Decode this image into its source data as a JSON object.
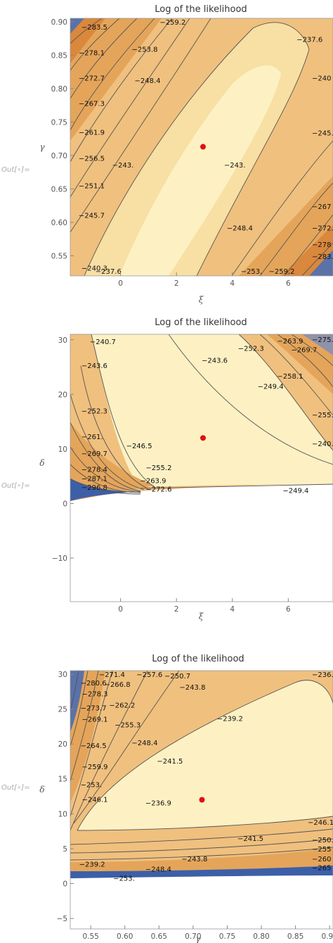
{
  "out_label": "Out[∘]=",
  "colors": {
    "high": "#fdf1c4",
    "mid": "#f0c07e",
    "low": "#d9883c",
    "min": "#3d5fa8",
    "line": "#555555",
    "point": "#e01010"
  },
  "chart_data": [
    {
      "type": "contour",
      "title": "Log of the likelihood",
      "xlabel": "ξ",
      "ylabel": "γ",
      "xlim": [
        -1.8,
        7.6
      ],
      "ylim": [
        0.52,
        0.905
      ],
      "xticks": [
        "0",
        "2",
        "4",
        "6"
      ],
      "xtick_values": [
        0,
        2,
        4,
        6
      ],
      "yticks": [
        "0.55",
        "0.60",
        "0.65",
        "0.70",
        "0.75",
        "0.80",
        "0.85",
        "0.90"
      ],
      "ytick_values": [
        0.55,
        0.6,
        0.65,
        0.7,
        0.75,
        0.8,
        0.85,
        0.9
      ],
      "max_point": {
        "x": 2.95,
        "y": 0.713
      },
      "contour_labels": [
        {
          "text": "-237.6",
          "x": 6.3,
          "y": 0.87
        },
        {
          "text": "-253.8",
          "x": 0.4,
          "y": 0.855
        },
        {
          "text": "-248.4",
          "x": 0.5,
          "y": 0.808
        },
        {
          "text": "-243.",
          "x": -0.3,
          "y": 0.682
        },
        {
          "text": "-243.",
          "x": 3.7,
          "y": 0.682
        },
        {
          "text": "-248.4",
          "x": 3.8,
          "y": 0.588
        },
        {
          "text": "-240.3",
          "x": -1.4,
          "y": 0.528
        },
        {
          "text": "-237.6",
          "x": -0.9,
          "y": 0.523
        },
        {
          "text": "-283.5",
          "x": -1.4,
          "y": 0.888
        },
        {
          "text": "-278.1",
          "x": -1.5,
          "y": 0.85
        },
        {
          "text": "-272.7",
          "x": -1.5,
          "y": 0.812
        },
        {
          "text": "-267.3",
          "x": -1.5,
          "y": 0.774
        },
        {
          "text": "-261.9",
          "x": -1.5,
          "y": 0.731
        },
        {
          "text": "-256.5",
          "x": -1.5,
          "y": 0.692
        },
        {
          "text": "-251.1",
          "x": -1.5,
          "y": 0.651
        },
        {
          "text": "-245.7",
          "x": -1.5,
          "y": 0.607
        },
        {
          "text": "-259.2",
          "x": 1.4,
          "y": 0.898
        },
        {
          "text": "-253.",
          "x": 4.3,
          "y": 0.523
        },
        {
          "text": "-259.2",
          "x": 5.3,
          "y": 0.523
        },
        {
          "text": "-240",
          "x": 7.3,
          "y": 0.812
        },
        {
          "text": "-245.",
          "x": 7.3,
          "y": 0.73
        },
        {
          "text": "-267",
          "x": 7.3,
          "y": 0.62
        },
        {
          "text": "-272.",
          "x": 7.3,
          "y": 0.588
        },
        {
          "text": "-278",
          "x": 7.3,
          "y": 0.563
        },
        {
          "text": "-283.",
          "x": 7.3,
          "y": 0.545
        }
      ]
    },
    {
      "type": "contour",
      "title": "Log of the likelihood",
      "xlabel": "ξ",
      "ylabel": "δ",
      "xlim": [
        -1.8,
        7.6
      ],
      "ylim": [
        -18,
        31
      ],
      "xticks": [
        "0",
        "2",
        "4",
        "6"
      ],
      "xtick_values": [
        0,
        2,
        4,
        6
      ],
      "yticks": [
        "-10",
        "0",
        "10",
        "20",
        "30"
      ],
      "ytick_values": [
        -10,
        0,
        10,
        20,
        30
      ],
      "max_point": {
        "x": 2.95,
        "y": 12
      },
      "contour_labels": [
        {
          "text": "-240.7",
          "x": -1.1,
          "y": 29.2
        },
        {
          "text": "-243.6",
          "x": -1.4,
          "y": 24.8
        },
        {
          "text": "-243.6",
          "x": 2.9,
          "y": 25.8
        },
        {
          "text": "-252.3",
          "x": 4.2,
          "y": 28
        },
        {
          "text": "-263.9",
          "x": 5.6,
          "y": 29.3
        },
        {
          "text": "-269.7",
          "x": 6.1,
          "y": 27.7
        },
        {
          "text": "-275.5",
          "x": 6.9,
          "y": 29.6
        },
        {
          "text": "-258.1",
          "x": 5.6,
          "y": 22.9
        },
        {
          "text": "-249.4",
          "x": 4.9,
          "y": 21
        },
        {
          "text": "-252.3",
          "x": -1.4,
          "y": 16.5
        },
        {
          "text": "-261.",
          "x": -1.4,
          "y": 11.8
        },
        {
          "text": "-269.7",
          "x": -1.4,
          "y": 8.7
        },
        {
          "text": "-278.4",
          "x": -1.4,
          "y": 5.8
        },
        {
          "text": "-287.1",
          "x": -1.4,
          "y": 4.1
        },
        {
          "text": "-296.8",
          "x": -1.4,
          "y": 2.5
        },
        {
          "text": "-246.5",
          "x": 0.2,
          "y": 10.1
        },
        {
          "text": "-255.2",
          "x": 0.9,
          "y": 6.1
        },
        {
          "text": "-263.9",
          "x": 0.7,
          "y": 3.7
        },
        {
          "text": "-272.6",
          "x": 0.9,
          "y": 2.2
        },
        {
          "text": "-249.4",
          "x": 5.8,
          "y": 1.9
        },
        {
          "text": "-240.",
          "x": 7.3,
          "y": 10.5
        },
        {
          "text": "-255.2",
          "x": 7.2,
          "y": 15.8
        }
      ]
    },
    {
      "type": "contour",
      "title": "Log of the likelihood",
      "xlabel": "γ",
      "ylabel": "δ",
      "xlim": [
        0.52,
        0.905
      ],
      "ylim": [
        -6.5,
        30.5
      ],
      "xticks": [
        "0.55",
        "0.60",
        "0.65",
        "0.70",
        "0.75",
        "0.80",
        "0.85",
        "0.90"
      ],
      "xtick_values": [
        0.55,
        0.6,
        0.65,
        0.7,
        0.75,
        0.8,
        0.85,
        0.9
      ],
      "yticks": [
        "-5",
        "0",
        "5",
        "10",
        "15",
        "20",
        "25",
        "30"
      ],
      "ytick_values": [
        -5,
        0,
        5,
        10,
        15,
        20,
        25,
        30
      ],
      "max_point": {
        "x": 0.713,
        "y": 12
      },
      "contour_labels": [
        {
          "text": "-271.4",
          "x": 0.562,
          "y": 29.8
        },
        {
          "text": "-257.6",
          "x": 0.617,
          "y": 29.6
        },
        {
          "text": "-250.7",
          "x": 0.658,
          "y": 29.4
        },
        {
          "text": "-236.9",
          "x": 0.895,
          "y": 29.8
        },
        {
          "text": "-266.8",
          "x": 0.57,
          "y": 28.2
        },
        {
          "text": "-280.6",
          "x": 0.535,
          "y": 28.4
        },
        {
          "text": "-278.3",
          "x": 0.537,
          "y": 26.8
        },
        {
          "text": "-262.2",
          "x": 0.577,
          "y": 25.2
        },
        {
          "text": "-273.7",
          "x": 0.535,
          "y": 24.8
        },
        {
          "text": "-269.1",
          "x": 0.537,
          "y": 23.2
        },
        {
          "text": "-255.3",
          "x": 0.585,
          "y": 22.4
        },
        {
          "text": "-243.8",
          "x": 0.68,
          "y": 27.8
        },
        {
          "text": "-239.2",
          "x": 0.735,
          "y": 23.3
        },
        {
          "text": "-248.4",
          "x": 0.61,
          "y": 19.8
        },
        {
          "text": "-264.5",
          "x": 0.535,
          "y": 19.4
        },
        {
          "text": "-241.5",
          "x": 0.647,
          "y": 17.2
        },
        {
          "text": "-259.9",
          "x": 0.537,
          "y": 16.4
        },
        {
          "text": "-253.",
          "x": 0.535,
          "y": 13.8
        },
        {
          "text": "-246.1",
          "x": 0.537,
          "y": 11.7
        },
        {
          "text": "-236.9",
          "x": 0.63,
          "y": 11.2
        },
        {
          "text": "-246.1",
          "x": 0.868,
          "y": 8.4
        },
        {
          "text": "-241.5",
          "x": 0.765,
          "y": 6.1
        },
        {
          "text": "-243.8",
          "x": 0.683,
          "y": 3.2
        },
        {
          "text": "-248.4",
          "x": 0.63,
          "y": 1.7
        },
        {
          "text": "-239.2",
          "x": 0.533,
          "y": 2.4
        },
        {
          "text": "-253.",
          "x": 0.583,
          "y": 0.4
        },
        {
          "text": "-250.",
          "x": 0.89,
          "y": 5.9
        },
        {
          "text": "-255",
          "x": 0.895,
          "y": 4.6
        },
        {
          "text": "-260",
          "x": 0.895,
          "y": 3.2
        },
        {
          "text": "-265",
          "x": 0.895,
          "y": 1.9
        }
      ]
    }
  ]
}
